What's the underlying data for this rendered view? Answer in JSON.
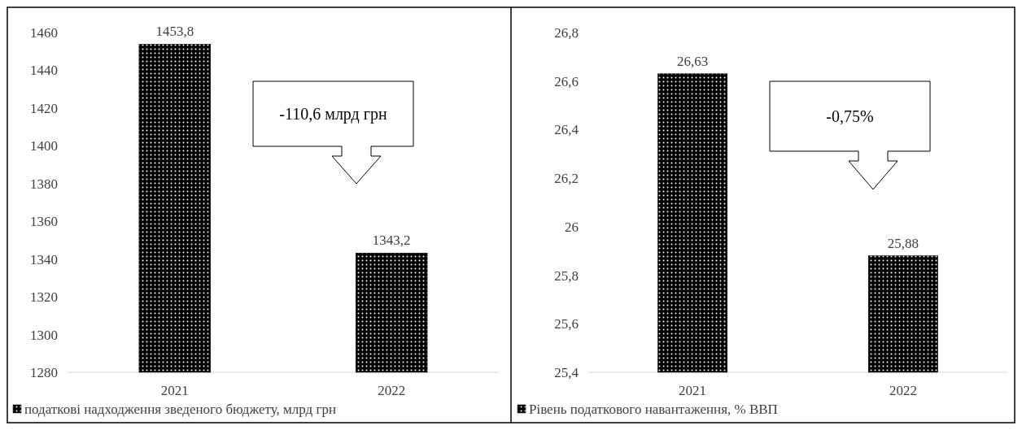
{
  "chart_data": [
    {
      "type": "bar",
      "categories": [
        "2021",
        "2022"
      ],
      "series": [
        {
          "name": "податкові надходження зведеного бюджету, млрд грн",
          "color": "#000000",
          "values": [
            1453.8,
            1343.2
          ],
          "value_labels": [
            "1453,8",
            "1343,2"
          ]
        }
      ],
      "ylim": [
        1280,
        1460
      ],
      "yticks": [
        1280,
        1300,
        1320,
        1340,
        1360,
        1380,
        1400,
        1420,
        1440,
        1460
      ],
      "annotations": [
        "-110,6 млрд грн"
      ],
      "legend": "bottom left"
    },
    {
      "type": "bar",
      "categories": [
        "2021",
        "2022"
      ],
      "series": [
        {
          "name": "Рівень податкового навантаження, % ВВП",
          "color": "#000000",
          "values": [
            26.63,
            25.88
          ],
          "value_labels": [
            "26,63",
            "25,88"
          ]
        }
      ],
      "ylim": [
        25.4,
        26.8
      ],
      "yticks": [
        {
          "value": 25.4,
          "label": "25,4"
        },
        {
          "value": 25.6,
          "label": "25,6"
        },
        {
          "value": 25.8,
          "label": "25,8"
        },
        26,
        {
          "value": 26.2,
          "label": "26,2"
        },
        {
          "value": 26.4,
          "label": "26,4"
        },
        {
          "value": 26.6,
          "label": "26,6"
        },
        {
          "value": 26.8,
          "label": "26,8"
        }
      ],
      "annotations": [
        "-0,75%"
      ],
      "legend": "bottom left"
    }
  ]
}
